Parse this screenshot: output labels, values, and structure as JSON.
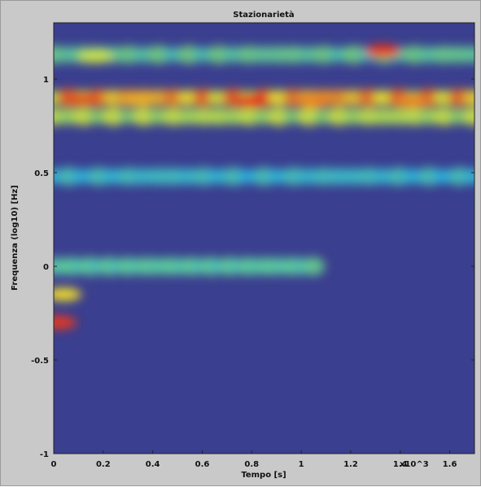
{
  "chart_data": {
    "type": "heatmap",
    "title": "Stazionarietà",
    "xlabel": "Tempo [s]",
    "ylabel": "Frequenza (log10) [Hz]",
    "x_multiplier_label": "x10^3",
    "xlim": [
      0,
      1.7
    ],
    "ylim": [
      -1,
      1.3
    ],
    "x_ticks": [
      {
        "value": 0,
        "label": "0"
      },
      {
        "value": 0.2,
        "label": "0.2"
      },
      {
        "value": 0.4,
        "label": "0.4"
      },
      {
        "value": 0.6,
        "label": "0.6"
      },
      {
        "value": 0.8,
        "label": "0.8"
      },
      {
        "value": 1.0,
        "label": "1"
      },
      {
        "value": 1.2,
        "label": "1.2"
      },
      {
        "value": 1.4,
        "label": "1.4"
      },
      {
        "value": 1.6,
        "label": "1.6"
      }
    ],
    "y_ticks": [
      {
        "value": -1,
        "label": "-1"
      },
      {
        "value": -0.5,
        "label": "-0.5"
      },
      {
        "value": 0,
        "label": "0"
      },
      {
        "value": 0.5,
        "label": "0.5"
      },
      {
        "value": 1,
        "label": "1"
      }
    ],
    "colormap": "jet",
    "colors": {
      "low": "#3b3f8f",
      "mid_low": "#23b8e8",
      "mid": "#7fd36b",
      "mid_high": "#f2ef2c",
      "high": "#e8261b",
      "frame_background": "#c9c9c9"
    },
    "bands": [
      {
        "y_center": 0.9,
        "x_range": [
          0,
          1.7
        ],
        "intensity": 0.82,
        "description_label": ""
      },
      {
        "y_center": 0.8,
        "x_range": [
          0,
          1.7
        ],
        "intensity": 0.62,
        "description_label": ""
      },
      {
        "y_center": 1.13,
        "x_range": [
          0,
          1.7
        ],
        "intensity": 0.45,
        "description_label": ""
      },
      {
        "y_center": 0.48,
        "x_range": [
          0,
          1.7
        ],
        "intensity": 0.35,
        "description_label": ""
      },
      {
        "y_center": 0.0,
        "x_range": [
          0,
          1.05
        ],
        "intensity": 0.42,
        "description_label": ""
      }
    ],
    "hotspots": [
      {
        "x": 0.8,
        "y": 0.88,
        "intensity": 1.0
      },
      {
        "x": 0.12,
        "y": 0.89,
        "intensity": 0.95
      },
      {
        "x": 0.34,
        "y": 0.89,
        "intensity": 0.85
      },
      {
        "x": 1.05,
        "y": 0.88,
        "intensity": 0.9
      },
      {
        "x": 1.45,
        "y": 0.88,
        "intensity": 0.9
      },
      {
        "x": 1.33,
        "y": 1.15,
        "intensity": 0.98
      },
      {
        "x": 0.02,
        "y": -0.3,
        "intensity": 0.98
      },
      {
        "x": 0.04,
        "y": -0.15,
        "intensity": 0.8
      },
      {
        "x": 0.17,
        "y": 1.12,
        "intensity": 0.7
      }
    ]
  }
}
